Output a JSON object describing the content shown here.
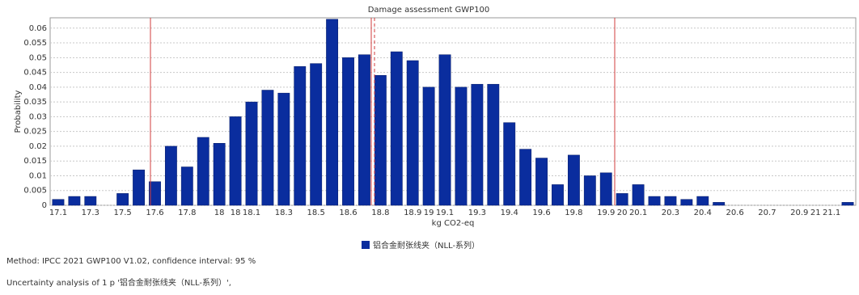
{
  "chart_data": {
    "type": "bar",
    "title": "Damage assessment GWP100",
    "x_label": "kg CO2-eq",
    "y_label": "Probability",
    "categories": [
      "17.1",
      null,
      "17.3",
      null,
      "17.5",
      null,
      "17.6",
      null,
      "17.8",
      null,
      "18",
      "18",
      "18.1",
      null,
      "18.3",
      null,
      "18.5",
      null,
      "18.6",
      null,
      "18.8",
      null,
      "18.9",
      "19",
      "19.1",
      null,
      "19.3",
      null,
      "19.4",
      null,
      "19.6",
      null,
      "19.8",
      null,
      "19.9",
      "20",
      "20.1",
      null,
      "20.3",
      null,
      "20.4",
      null,
      "20.6",
      null,
      "20.7",
      null,
      "20.9",
      "21",
      "21.1",
      null
    ],
    "series": [
      {
        "name": "铝合金耐张线夹（NLL-系列）",
        "color": "#0a2d9e",
        "values": [
          0.002,
          0.003,
          0.003,
          0,
          0.004,
          0.012,
          0.008,
          0.02,
          0.013,
          0.023,
          0.021,
          0.03,
          0.035,
          0.039,
          0.038,
          0.047,
          0.048,
          0.063,
          0.05,
          0.051,
          0.044,
          0.052,
          0.049,
          0.04,
          0.051,
          0.04,
          0.041,
          0.041,
          0.028,
          0.019,
          0.016,
          0.007,
          0.017,
          0.01,
          0.011,
          0.004,
          0.007,
          0.003,
          0.003,
          0.002,
          0.003,
          0.001,
          0,
          0,
          0,
          0,
          0,
          0,
          0,
          0.001
        ]
      }
    ],
    "ylim": [
      0,
      0.0635
    ],
    "yticks": [
      0,
      0.005,
      0.01,
      0.015,
      0.02,
      0.025,
      0.03,
      0.035,
      0.04,
      0.045,
      0.05,
      0.055,
      0.06
    ],
    "grid": true,
    "footer": [
      "Method: IPCC 2021 GWP100 V1.02, confidence interval: 95 %",
      "Uncertainty analysis of 1 p '铝合金耐张线夹（NLL-系列）',"
    ]
  }
}
